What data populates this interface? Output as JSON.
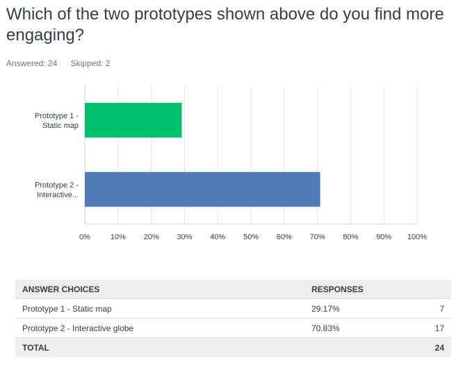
{
  "question": "Which of the two prototypes shown above do you find more engaging?",
  "stats": {
    "answered": "Answered: 24",
    "skipped": "Skipped: 2"
  },
  "chart_data": {
    "type": "bar",
    "orientation": "horizontal",
    "categories": [
      [
        "Prototype 1 -",
        "Static map"
      ],
      [
        "Prototype 2 -",
        "Interactive..."
      ]
    ],
    "values": [
      29.17,
      70.83
    ],
    "colors": [
      "#00bf6f",
      "#507cb6"
    ],
    "xlim": [
      0,
      100
    ],
    "xticks": [
      "0%",
      "10%",
      "20%",
      "30%",
      "40%",
      "50%",
      "60%",
      "70%",
      "80%",
      "90%",
      "100%"
    ],
    "grid": true
  },
  "table": {
    "headers": {
      "choice": "ANSWER CHOICES",
      "responses": "RESPONSES"
    },
    "rows": [
      {
        "choice": "Prototype 1 - Static map",
        "percent": "29.17%",
        "count": "7"
      },
      {
        "choice": "Prototype 2 - Interactive globe",
        "percent": "70.83%",
        "count": "17"
      }
    ],
    "total": {
      "label": "TOTAL",
      "count": "24"
    }
  }
}
